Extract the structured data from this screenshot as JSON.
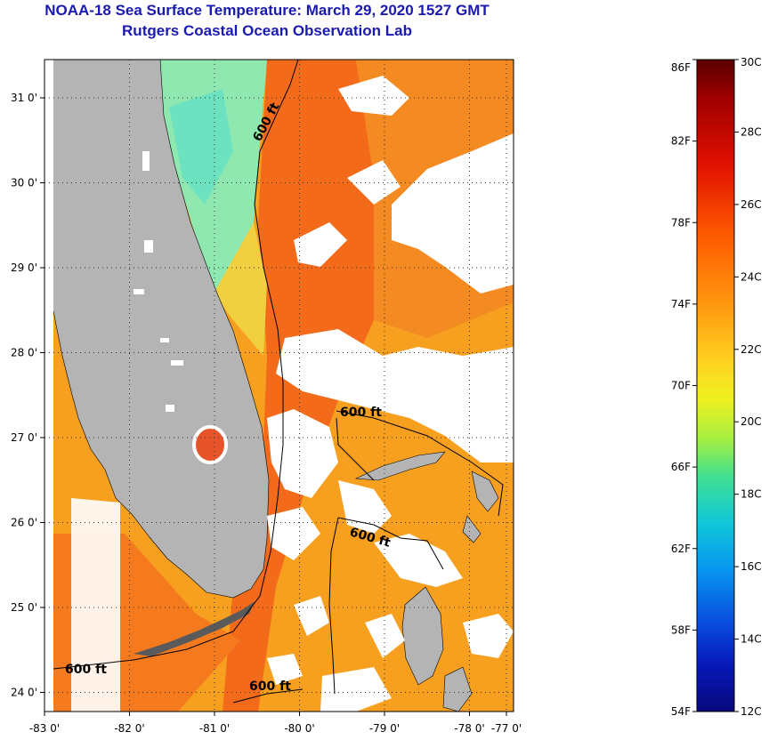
{
  "header": {
    "title": "NOAA-18 Sea Surface Temperature:  March 29, 2020 1527 GMT",
    "subtitle": "Rutgers Coastal Ocean Observation Lab"
  },
  "map": {
    "lon_ticks": [
      "-83 0'",
      "-82 0'",
      "-81 0'",
      "-80 0'",
      "-79 0'",
      "-78 0'",
      "-77 0'"
    ],
    "lat_ticks": [
      "31 0'",
      "30 0'",
      "29 0'",
      "28 0'",
      "27 0'",
      "26 0'",
      "25 0'",
      "24 0'"
    ],
    "lon_values": [
      -83,
      -82,
      -81,
      -80,
      -79,
      -78,
      -77
    ],
    "lat_values": [
      31,
      30,
      29,
      28,
      27,
      26,
      25,
      24
    ],
    "contour_labels": [
      "600 ft",
      "600 ft",
      "600 ft",
      "600 ft",
      "600 ft"
    ],
    "colors": {
      "land": "#b4b4b4",
      "cloud": "#ffffff",
      "warm_sst": "#f26a1a",
      "mid_sst": "#f7a020",
      "cool_sst": "#7fe8b0"
    }
  },
  "colorbar": {
    "fahrenheit": [
      "86F",
      "82F",
      "78F",
      "74F",
      "70F",
      "66F",
      "62F",
      "58F",
      "54F"
    ],
    "celsius": [
      "30C",
      "28C",
      "26C",
      "24C",
      "22C",
      "20C",
      "18C",
      "16C",
      "14C",
      "12C"
    ],
    "f_range": [
      54,
      86
    ],
    "c_range": [
      12,
      30
    ]
  }
}
